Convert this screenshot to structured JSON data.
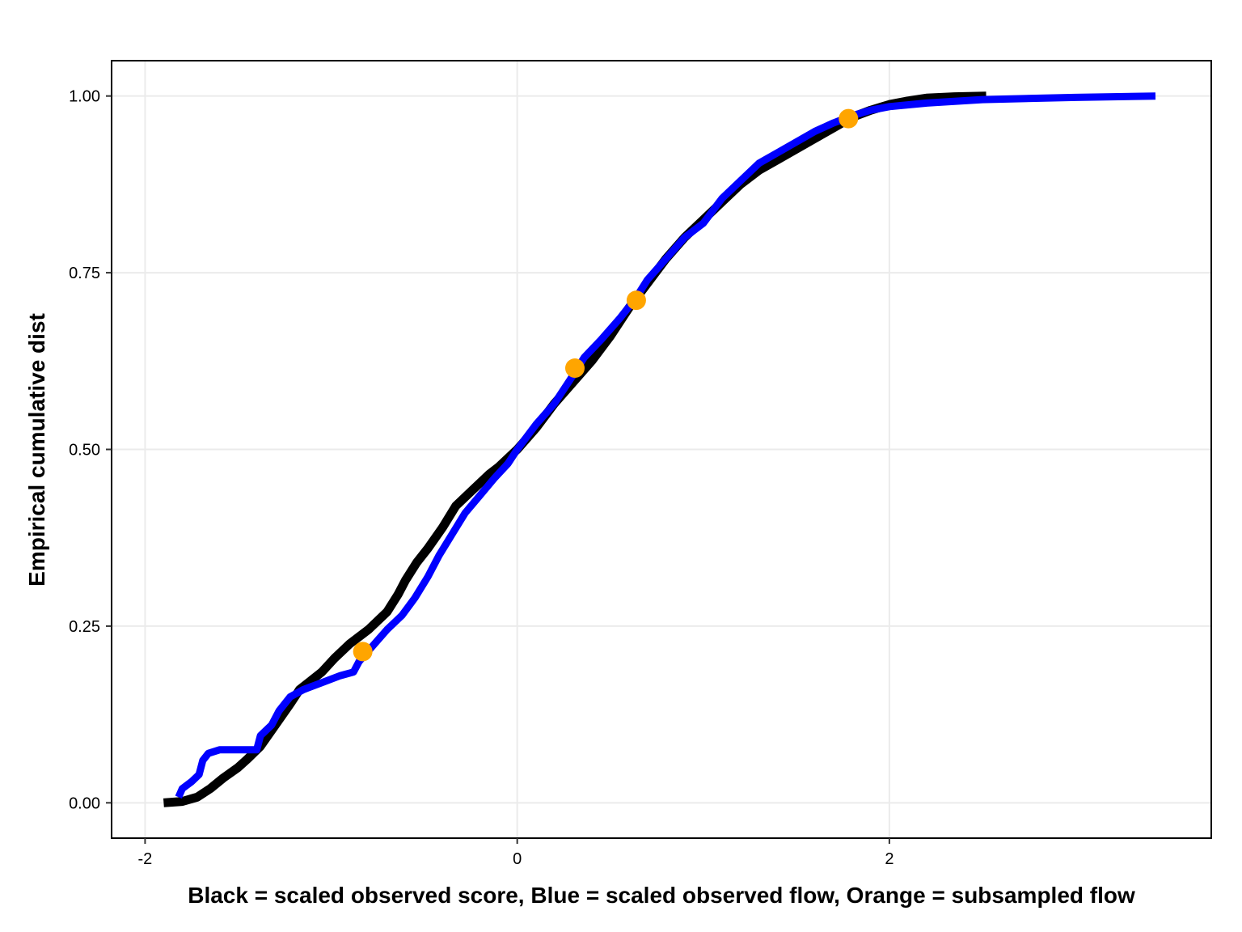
{
  "chart_data": {
    "type": "line",
    "title": "",
    "xlabel": "Black = scaled observed score, Blue = scaled observed flow, Orange = subsampled flow",
    "ylabel": "Empirical cumulative dist",
    "xlim": [
      -2.18,
      3.73
    ],
    "ylim": [
      -0.05,
      1.05
    ],
    "x_ticks": [
      -2,
      0,
      2
    ],
    "x_tick_labels": [
      "-2",
      "0",
      "2"
    ],
    "y_ticks": [
      0,
      0.25,
      0.5,
      0.75,
      1
    ],
    "y_tick_labels": [
      "0.00",
      "0.25",
      "0.50",
      "0.75",
      "1.00"
    ],
    "grid": true,
    "legend": "none",
    "series": [
      {
        "color": "#000000",
        "kind": "line",
        "points": [
          [
            -1.9,
            0.0
          ],
          [
            -1.8,
            0.002
          ],
          [
            -1.72,
            0.008
          ],
          [
            -1.65,
            0.02
          ],
          [
            -1.58,
            0.035
          ],
          [
            -1.5,
            0.05
          ],
          [
            -1.45,
            0.062
          ],
          [
            -1.38,
            0.08
          ],
          [
            -1.3,
            0.11
          ],
          [
            -1.22,
            0.14
          ],
          [
            -1.17,
            0.16
          ],
          [
            -1.05,
            0.185
          ],
          [
            -0.98,
            0.205
          ],
          [
            -0.9,
            0.225
          ],
          [
            -0.8,
            0.245
          ],
          [
            -0.7,
            0.27
          ],
          [
            -0.64,
            0.295
          ],
          [
            -0.6,
            0.315
          ],
          [
            -0.54,
            0.34
          ],
          [
            -0.48,
            0.36
          ],
          [
            -0.4,
            0.39
          ],
          [
            -0.33,
            0.42
          ],
          [
            -0.25,
            0.44
          ],
          [
            -0.15,
            0.465
          ],
          [
            -0.1,
            0.475
          ],
          [
            0.0,
            0.5
          ],
          [
            0.1,
            0.53
          ],
          [
            0.2,
            0.565
          ],
          [
            0.3,
            0.595
          ],
          [
            0.4,
            0.625
          ],
          [
            0.5,
            0.66
          ],
          [
            0.6,
            0.7
          ],
          [
            0.7,
            0.735
          ],
          [
            0.8,
            0.77
          ],
          [
            0.9,
            0.8
          ],
          [
            1.0,
            0.825
          ],
          [
            1.1,
            0.85
          ],
          [
            1.2,
            0.875
          ],
          [
            1.3,
            0.895
          ],
          [
            1.4,
            0.91
          ],
          [
            1.5,
            0.925
          ],
          [
            1.6,
            0.94
          ],
          [
            1.7,
            0.955
          ],
          [
            1.8,
            0.97
          ],
          [
            1.9,
            0.98
          ],
          [
            2.0,
            0.988
          ],
          [
            2.1,
            0.993
          ],
          [
            2.2,
            0.997
          ],
          [
            2.35,
            0.999
          ],
          [
            2.52,
            1.0
          ]
        ]
      },
      {
        "color": "#0000ff",
        "kind": "line",
        "points": [
          [
            -1.82,
            0.008
          ],
          [
            -1.8,
            0.02
          ],
          [
            -1.75,
            0.03
          ],
          [
            -1.71,
            0.04
          ],
          [
            -1.69,
            0.06
          ],
          [
            -1.66,
            0.07
          ],
          [
            -1.6,
            0.075
          ],
          [
            -1.5,
            0.075
          ],
          [
            -1.4,
            0.075
          ],
          [
            -1.38,
            0.095
          ],
          [
            -1.32,
            0.11
          ],
          [
            -1.28,
            0.13
          ],
          [
            -1.22,
            0.15
          ],
          [
            -1.15,
            0.16
          ],
          [
            -1.05,
            0.17
          ],
          [
            -0.95,
            0.18
          ],
          [
            -0.88,
            0.185
          ],
          [
            -0.85,
            0.2
          ],
          [
            -0.8,
            0.215
          ],
          [
            -0.75,
            0.23
          ],
          [
            -0.7,
            0.245
          ],
          [
            -0.62,
            0.265
          ],
          [
            -0.55,
            0.29
          ],
          [
            -0.48,
            0.32
          ],
          [
            -0.42,
            0.35
          ],
          [
            -0.35,
            0.38
          ],
          [
            -0.28,
            0.41
          ],
          [
            -0.2,
            0.435
          ],
          [
            -0.12,
            0.46
          ],
          [
            -0.05,
            0.48
          ],
          [
            0.0,
            0.5
          ],
          [
            0.1,
            0.535
          ],
          [
            0.2,
            0.565
          ],
          [
            0.3,
            0.605
          ],
          [
            0.36,
            0.63
          ],
          [
            0.45,
            0.655
          ],
          [
            0.55,
            0.685
          ],
          [
            0.64,
            0.715
          ],
          [
            0.7,
            0.74
          ],
          [
            0.8,
            0.77
          ],
          [
            0.9,
            0.8
          ],
          [
            1.0,
            0.82
          ],
          [
            1.1,
            0.855
          ],
          [
            1.2,
            0.88
          ],
          [
            1.3,
            0.905
          ],
          [
            1.4,
            0.92
          ],
          [
            1.5,
            0.935
          ],
          [
            1.6,
            0.95
          ],
          [
            1.7,
            0.962
          ],
          [
            1.8,
            0.972
          ],
          [
            1.9,
            0.98
          ],
          [
            2.0,
            0.985
          ],
          [
            2.2,
            0.99
          ],
          [
            2.5,
            0.995
          ],
          [
            3.0,
            0.998
          ],
          [
            3.43,
            1.0
          ]
        ]
      },
      {
        "color": "#ffa500",
        "kind": "points",
        "points": [
          [
            -0.83,
            0.214
          ],
          [
            0.31,
            0.615
          ],
          [
            0.64,
            0.711
          ],
          [
            1.78,
            0.968
          ]
        ]
      }
    ]
  }
}
